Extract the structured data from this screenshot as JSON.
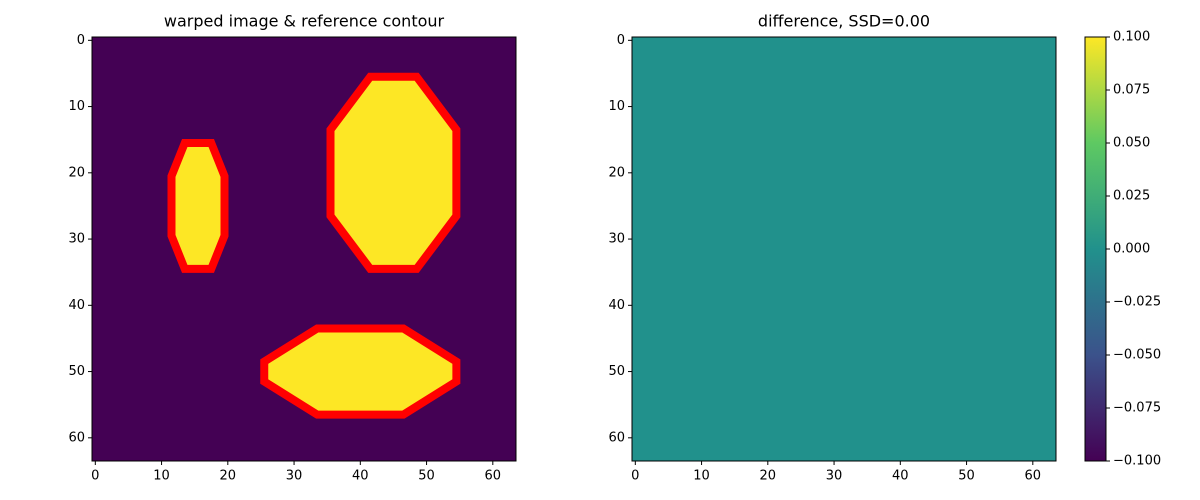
{
  "chart_data": [
    {
      "type": "image",
      "title": "warped image & reference contour",
      "xlim": [
        -0.5,
        63.5
      ],
      "ylim": [
        63.5,
        -0.5
      ],
      "xticks": [
        0,
        10,
        20,
        30,
        40,
        50,
        60
      ],
      "yticks": [
        0,
        10,
        20,
        30,
        40,
        50,
        60
      ],
      "background": "#440154",
      "shape_color": "#fde725",
      "contour_color": "#ff0000",
      "shapes": [
        {
          "x": [
            13.5,
            17.5,
            19.5,
            19.5,
            17.5,
            13.5,
            11.5,
            11.5
          ],
          "y": [
            15.5,
            15.5,
            20.5,
            29.5,
            34.5,
            34.5,
            29.5,
            20.5
          ]
        },
        {
          "x": [
            41.5,
            48.5,
            54.5,
            54.5,
            48.5,
            41.5,
            35.5,
            35.5
          ],
          "y": [
            5.5,
            5.5,
            13.5,
            26.5,
            34.5,
            34.5,
            26.5,
            13.5
          ]
        },
        {
          "x": [
            33.5,
            46.5,
            54.5,
            54.5,
            46.5,
            33.5,
            25.5,
            25.5
          ],
          "y": [
            43.5,
            43.5,
            48.5,
            51.5,
            56.5,
            56.5,
            51.5,
            48.5
          ]
        }
      ]
    },
    {
      "type": "uniform-image",
      "title": "difference, SSD=0.00",
      "xlim": [
        -0.5,
        63.5
      ],
      "ylim": [
        63.5,
        -0.5
      ],
      "xticks": [
        0,
        10,
        20,
        30,
        40,
        50,
        60
      ],
      "yticks": [
        0,
        10,
        20,
        30,
        40,
        50,
        60
      ],
      "value": 0,
      "colormap": [
        "#440154",
        "#3b528b",
        "#21918c",
        "#5ec962",
        "#fde725"
      ],
      "clim": [
        -0.1,
        0.1
      ],
      "colorbar_ticks": [
        {
          "value": 0.1,
          "label": "0.100"
        },
        {
          "value": 0.075,
          "label": "0.075"
        },
        {
          "value": 0.05,
          "label": "0.050"
        },
        {
          "value": 0.025,
          "label": "0.025"
        },
        {
          "value": 0,
          "label": "0.000"
        },
        {
          "value": -0.025,
          "label": "−0.025"
        },
        {
          "value": -0.05,
          "label": "−0.050"
        },
        {
          "value": -0.075,
          "label": "−0.075"
        },
        {
          "value": -0.1,
          "label": "−0.100"
        }
      ]
    }
  ]
}
